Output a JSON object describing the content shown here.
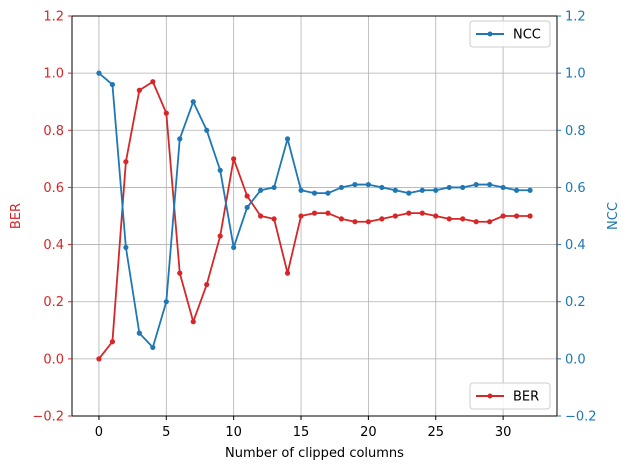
{
  "chart_data": {
    "type": "line",
    "xlabel": "Number of clipped columns",
    "x_ticks": [
      "0",
      "5",
      "10",
      "15",
      "20",
      "25",
      "30"
    ],
    "xlim": [
      -2,
      34
    ],
    "grid": true,
    "left_axis": {
      "label": "BER",
      "color": "#d62728",
      "ylim": [
        -0.2,
        1.2
      ],
      "ticks": [
        "−0.2",
        "0.0",
        "0.2",
        "0.4",
        "0.6",
        "0.8",
        "1.0",
        "1.2"
      ]
    },
    "right_axis": {
      "label": "NCC",
      "color": "#1f77b4",
      "ylim": [
        -0.2,
        1.2
      ],
      "ticks": [
        "−0.2",
        "0.0",
        "0.2",
        "0.4",
        "0.6",
        "0.8",
        "1.0",
        "1.2"
      ]
    },
    "x": [
      0,
      1,
      2,
      3,
      4,
      5,
      6,
      7,
      8,
      9,
      10,
      11,
      12,
      13,
      14,
      15,
      16,
      17,
      18,
      19,
      20,
      21,
      22,
      23,
      24,
      25,
      26,
      27,
      28,
      29,
      30,
      31,
      32
    ],
    "series": [
      {
        "name": "BER",
        "axis": "left",
        "color": "#d62728",
        "legend_position": "lower-right",
        "values": [
          0.0,
          0.06,
          0.69,
          0.94,
          0.97,
          0.86,
          0.3,
          0.13,
          0.26,
          0.43,
          0.7,
          0.57,
          0.5,
          0.49,
          0.3,
          0.5,
          0.51,
          0.51,
          0.49,
          0.48,
          0.48,
          0.49,
          0.5,
          0.51,
          0.51,
          0.5,
          0.49,
          0.49,
          0.48,
          0.48,
          0.5,
          0.5,
          0.5
        ]
      },
      {
        "name": "NCC",
        "axis": "right",
        "color": "#1f77b4",
        "legend_position": "upper-right",
        "values": [
          1.0,
          0.96,
          0.39,
          0.09,
          0.04,
          0.2,
          0.77,
          0.9,
          0.8,
          0.66,
          0.39,
          0.53,
          0.59,
          0.6,
          0.77,
          0.59,
          0.58,
          0.58,
          0.6,
          0.61,
          0.61,
          0.6,
          0.59,
          0.58,
          0.59,
          0.59,
          0.6,
          0.6,
          0.61,
          0.61,
          0.6,
          0.59,
          0.59
        ]
      }
    ]
  }
}
